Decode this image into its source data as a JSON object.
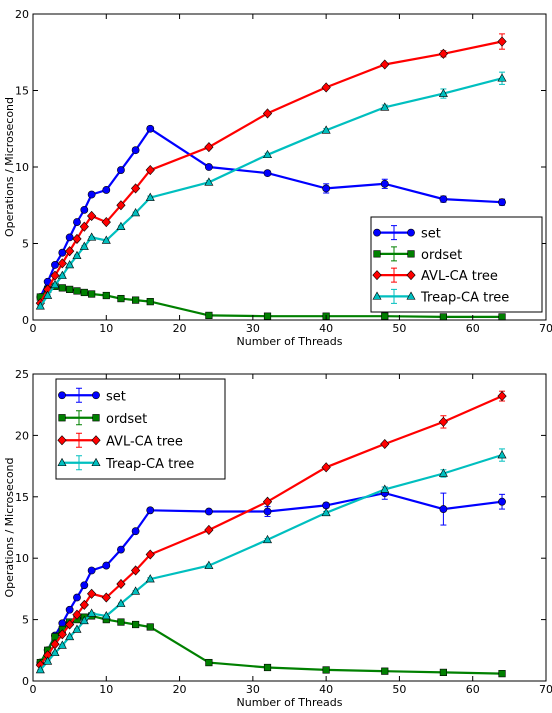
{
  "chart_data": [
    {
      "type": "line",
      "xlabel": "Number of Threads",
      "ylabel": "Operations / Microsecond",
      "xlim": [
        0,
        70
      ],
      "ylim": [
        0,
        20
      ],
      "xticks": [
        0,
        10,
        20,
        30,
        40,
        50,
        60,
        70
      ],
      "yticks": [
        0,
        5,
        10,
        15,
        20
      ],
      "grid": false,
      "legend": "lower-right",
      "error_bars": true,
      "series": [
        {
          "name": "set",
          "color": "#0000ff",
          "marker": "circle",
          "x": [
            1,
            2,
            3,
            4,
            5,
            6,
            7,
            8,
            10,
            12,
            14,
            16,
            24,
            32,
            40,
            48,
            56,
            64
          ],
          "y": [
            1.5,
            2.5,
            3.6,
            4.4,
            5.4,
            6.4,
            7.2,
            8.2,
            8.5,
            9.8,
            11.1,
            12.5,
            10.0,
            9.6,
            8.6,
            8.9,
            7.9,
            7.7
          ],
          "err": [
            0.1,
            0.1,
            0.1,
            0.1,
            0.1,
            0.1,
            0.1,
            0.1,
            0.1,
            0.1,
            0.15,
            0.15,
            0.1,
            0.15,
            0.3,
            0.3,
            0.2,
            0.2
          ]
        },
        {
          "name": "ordset",
          "color": "#008000",
          "marker": "square",
          "x": [
            1,
            2,
            3,
            4,
            5,
            6,
            7,
            8,
            10,
            12,
            14,
            16,
            24,
            32,
            40,
            48,
            56,
            64
          ],
          "y": [
            1.5,
            2.0,
            2.2,
            2.1,
            2.0,
            1.9,
            1.8,
            1.7,
            1.6,
            1.4,
            1.3,
            1.2,
            0.3,
            0.25,
            0.25,
            0.25,
            0.2,
            0.2
          ],
          "err": [
            0.05,
            0.05,
            0.05,
            0.05,
            0.05,
            0.05,
            0.05,
            0.05,
            0.05,
            0.05,
            0.05,
            0.05,
            0.03,
            0.03,
            0.03,
            0.03,
            0.03,
            0.03
          ]
        },
        {
          "name": "AVL-CA tree",
          "color": "#ff0000",
          "marker": "diamond",
          "x": [
            1,
            2,
            3,
            4,
            5,
            6,
            7,
            8,
            10,
            12,
            14,
            16,
            24,
            32,
            40,
            48,
            56,
            64
          ],
          "y": [
            1.1,
            2.0,
            2.9,
            3.7,
            4.5,
            5.3,
            6.1,
            6.8,
            6.4,
            7.5,
            8.6,
            9.8,
            11.3,
            13.5,
            15.2,
            16.7,
            17.4,
            18.2
          ],
          "err": [
            0.05,
            0.05,
            0.05,
            0.05,
            0.05,
            0.05,
            0.05,
            0.05,
            0.05,
            0.05,
            0.05,
            0.1,
            0.1,
            0.1,
            0.1,
            0.1,
            0.2,
            0.5
          ]
        },
        {
          "name": "Treap-CA tree",
          "color": "#00bfbf",
          "marker": "triangle",
          "x": [
            1,
            2,
            3,
            4,
            5,
            6,
            7,
            8,
            10,
            12,
            14,
            16,
            24,
            32,
            40,
            48,
            56,
            64
          ],
          "y": [
            0.9,
            1.6,
            2.3,
            2.9,
            3.6,
            4.2,
            4.8,
            5.4,
            5.2,
            6.1,
            7.0,
            8.0,
            9.0,
            10.8,
            12.4,
            13.9,
            14.8,
            15.8
          ],
          "err": [
            0.05,
            0.05,
            0.05,
            0.05,
            0.05,
            0.05,
            0.05,
            0.05,
            0.05,
            0.05,
            0.05,
            0.1,
            0.1,
            0.1,
            0.1,
            0.15,
            0.3,
            0.4
          ]
        }
      ]
    },
    {
      "type": "line",
      "xlabel": "Number of Threads",
      "ylabel": "Operations / Microsecond",
      "xlim": [
        0,
        70
      ],
      "ylim": [
        0,
        25
      ],
      "xticks": [
        0,
        10,
        20,
        30,
        40,
        50,
        60,
        70
      ],
      "yticks": [
        0,
        5,
        10,
        15,
        20,
        25
      ],
      "grid": false,
      "legend": "upper-left",
      "error_bars": true,
      "series": [
        {
          "name": "set",
          "color": "#0000ff",
          "marker": "circle",
          "x": [
            1,
            2,
            3,
            4,
            5,
            6,
            7,
            8,
            10,
            12,
            14,
            16,
            24,
            32,
            40,
            48,
            56,
            64
          ],
          "y": [
            1.5,
            2.5,
            3.7,
            4.7,
            5.8,
            6.8,
            7.8,
            9.0,
            9.4,
            10.7,
            12.2,
            13.9,
            13.8,
            13.8,
            14.3,
            15.3,
            14.0,
            14.6
          ],
          "err": [
            0.1,
            0.1,
            0.1,
            0.1,
            0.1,
            0.1,
            0.1,
            0.1,
            0.1,
            0.1,
            0.1,
            0.1,
            0.1,
            0.4,
            0.2,
            0.5,
            1.3,
            0.6
          ]
        },
        {
          "name": "ordset",
          "color": "#008000",
          "marker": "square",
          "x": [
            1,
            2,
            3,
            4,
            5,
            6,
            7,
            8,
            10,
            12,
            14,
            16,
            24,
            32,
            40,
            48,
            56,
            64
          ],
          "y": [
            1.5,
            2.5,
            3.6,
            4.2,
            4.8,
            5.0,
            5.2,
            5.3,
            5.0,
            4.8,
            4.6,
            4.4,
            1.5,
            1.1,
            0.9,
            0.8,
            0.7,
            0.6
          ],
          "err": [
            0.05,
            0.05,
            0.05,
            0.05,
            0.05,
            0.05,
            0.05,
            0.05,
            0.05,
            0.05,
            0.05,
            0.05,
            0.05,
            0.05,
            0.05,
            0.05,
            0.05,
            0.05
          ]
        },
        {
          "name": "AVL-CA tree",
          "color": "#ff0000",
          "marker": "diamond",
          "x": [
            1,
            2,
            3,
            4,
            5,
            6,
            7,
            8,
            10,
            12,
            14,
            16,
            24,
            32,
            40,
            48,
            56,
            64
          ],
          "y": [
            1.3,
            2.1,
            3.0,
            3.8,
            4.6,
            5.4,
            6.2,
            7.1,
            6.8,
            7.9,
            9.0,
            10.3,
            12.3,
            14.6,
            17.4,
            19.3,
            21.1,
            23.2
          ],
          "err": [
            0.05,
            0.05,
            0.05,
            0.05,
            0.05,
            0.05,
            0.05,
            0.05,
            0.05,
            0.05,
            0.05,
            0.1,
            0.1,
            0.1,
            0.1,
            0.1,
            0.5,
            0.4
          ]
        },
        {
          "name": "Treap-CA tree",
          "color": "#00bfbf",
          "marker": "triangle",
          "x": [
            1,
            2,
            3,
            4,
            5,
            6,
            7,
            8,
            10,
            12,
            14,
            16,
            24,
            32,
            40,
            48,
            56,
            64
          ],
          "y": [
            0.9,
            1.6,
            2.3,
            2.9,
            3.6,
            4.2,
            4.9,
            5.5,
            5.3,
            6.3,
            7.3,
            8.3,
            9.4,
            11.5,
            13.7,
            15.6,
            16.9,
            18.4
          ],
          "err": [
            0.05,
            0.05,
            0.05,
            0.05,
            0.05,
            0.05,
            0.05,
            0.05,
            0.05,
            0.05,
            0.05,
            0.1,
            0.1,
            0.1,
            0.1,
            0.2,
            0.3,
            0.5
          ]
        }
      ]
    }
  ]
}
